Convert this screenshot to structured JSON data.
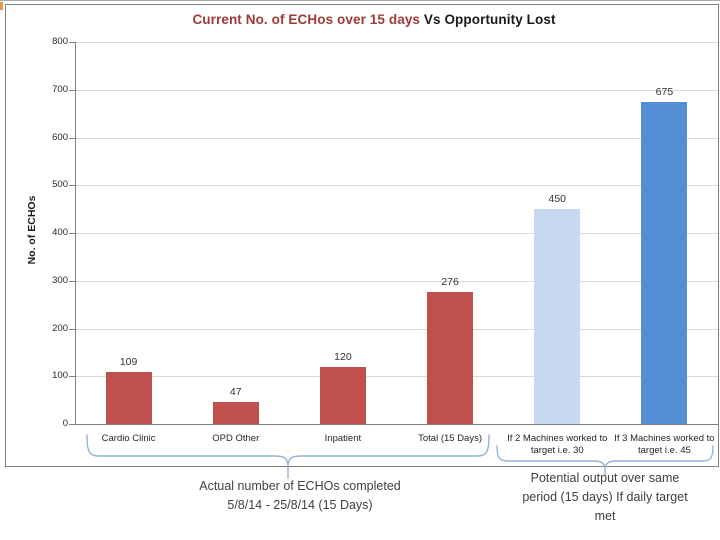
{
  "window": {
    "background": "#ffffff"
  },
  "chart_data": {
    "type": "bar",
    "title": {
      "primary": "Current No. of ECHos over 15 days",
      "secondary": " Vs Opportunity Lost"
    },
    "ylabel": "No. of ECHOs",
    "xlabel": "",
    "ylim": [
      0,
      800
    ],
    "yticks": [
      0,
      100,
      200,
      300,
      400,
      500,
      600,
      700,
      800
    ],
    "grid": true,
    "legend": false,
    "categories": [
      "Cardio Clinic",
      "OPD Other",
      "Inpatient",
      "Total (15 Days)",
      "If 2 Machines worked to\ntarget i.e. 30",
      "If 3 Machines worked to\ntarget i.e. 45"
    ],
    "values": [
      109,
      47,
      120,
      276,
      450,
      675
    ],
    "bar_colors": [
      "#C0504D",
      "#C0504D",
      "#C0504D",
      "#C0504D",
      "#C6D9F1",
      "#558ED5"
    ]
  },
  "annotations": {
    "left": "Actual number of ECHOs completed\n5/8/14 - 25/8/14  (15 Days)",
    "right": "Potential output over same\nperiod (15 days) If daily target\nmet"
  },
  "colors": {
    "title_primary": "#9C3A38",
    "title_secondary": "#1A1A1A",
    "bar_red": "#C0504D",
    "bar_light_blue": "#C6D9F1",
    "bar_blue": "#558ED5",
    "gridline": "#D8D8D8",
    "axis": "#808080",
    "brace": "#95B3D7",
    "annotation_text": "#404040"
  }
}
